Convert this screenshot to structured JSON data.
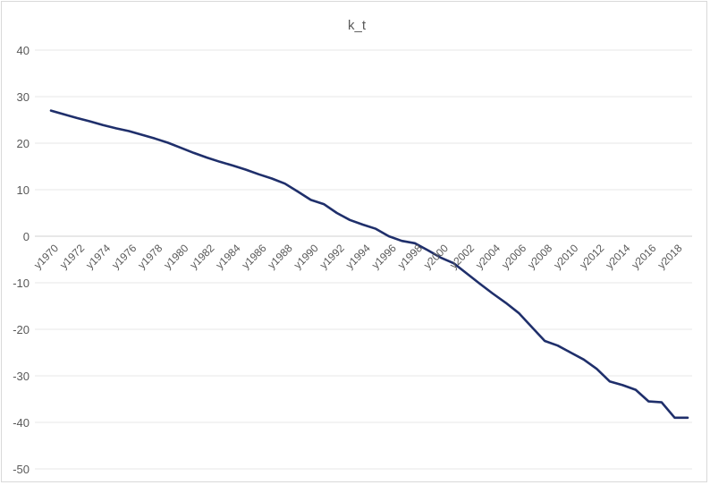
{
  "chart_data": {
    "type": "line",
    "title": "k_t",
    "xlabel": "",
    "ylabel": "",
    "ylim": [
      -50,
      40
    ],
    "yticks": [
      40,
      30,
      20,
      10,
      0,
      -10,
      -20,
      -30,
      -40,
      -50
    ],
    "grid": true,
    "legend": "none",
    "line_color": "#1f2f6b",
    "x": [
      "y1970",
      "y1971",
      "y1972",
      "y1973",
      "y1974",
      "y1975",
      "y1976",
      "y1977",
      "y1978",
      "y1979",
      "y1980",
      "y1981",
      "y1982",
      "y1983",
      "y1984",
      "y1985",
      "y1986",
      "y1987",
      "y1988",
      "y1989",
      "y1990",
      "y1991",
      "y1992",
      "y1993",
      "y1994",
      "y1995",
      "y1996",
      "y1997",
      "y1998",
      "y1999",
      "y2000",
      "y2001",
      "y2002",
      "y2003",
      "y2004",
      "y2005",
      "y2006",
      "y2007",
      "y2008",
      "y2009",
      "y2010",
      "y2011",
      "y2012",
      "y2013",
      "y2014",
      "y2015",
      "y2016",
      "y2017",
      "y2018",
      "y2019"
    ],
    "x_tick_labels": [
      "y1970",
      "y1972",
      "y1974",
      "y1976",
      "y1978",
      "y1980",
      "y1982",
      "y1984",
      "y1986",
      "y1988",
      "y1990",
      "y1992",
      "y1994",
      "y1996",
      "y1998",
      "y2000",
      "y2002",
      "y2004",
      "y2006",
      "y2008",
      "y2010",
      "y2012",
      "y2014",
      "y2016",
      "y2018"
    ],
    "values": [
      27,
      26.2,
      25.4,
      24.7,
      23.9,
      23.2,
      22.6,
      21.8,
      21,
      20.1,
      19,
      17.9,
      16.9,
      16,
      15.2,
      14.3,
      13.3,
      12.4,
      11.3,
      9.6,
      7.8,
      6.9,
      5,
      3.5,
      2.5,
      1.6,
      0,
      -1,
      -1.5,
      -3,
      -4.6,
      -5.8,
      -8,
      -10.2,
      -12.3,
      -14.3,
      -16.5,
      -19.5,
      -22.5,
      -23.5,
      -25,
      -26.5,
      -28.5,
      -31.2,
      -32,
      -33,
      -35.5,
      -35.7,
      -39,
      -39
    ]
  }
}
